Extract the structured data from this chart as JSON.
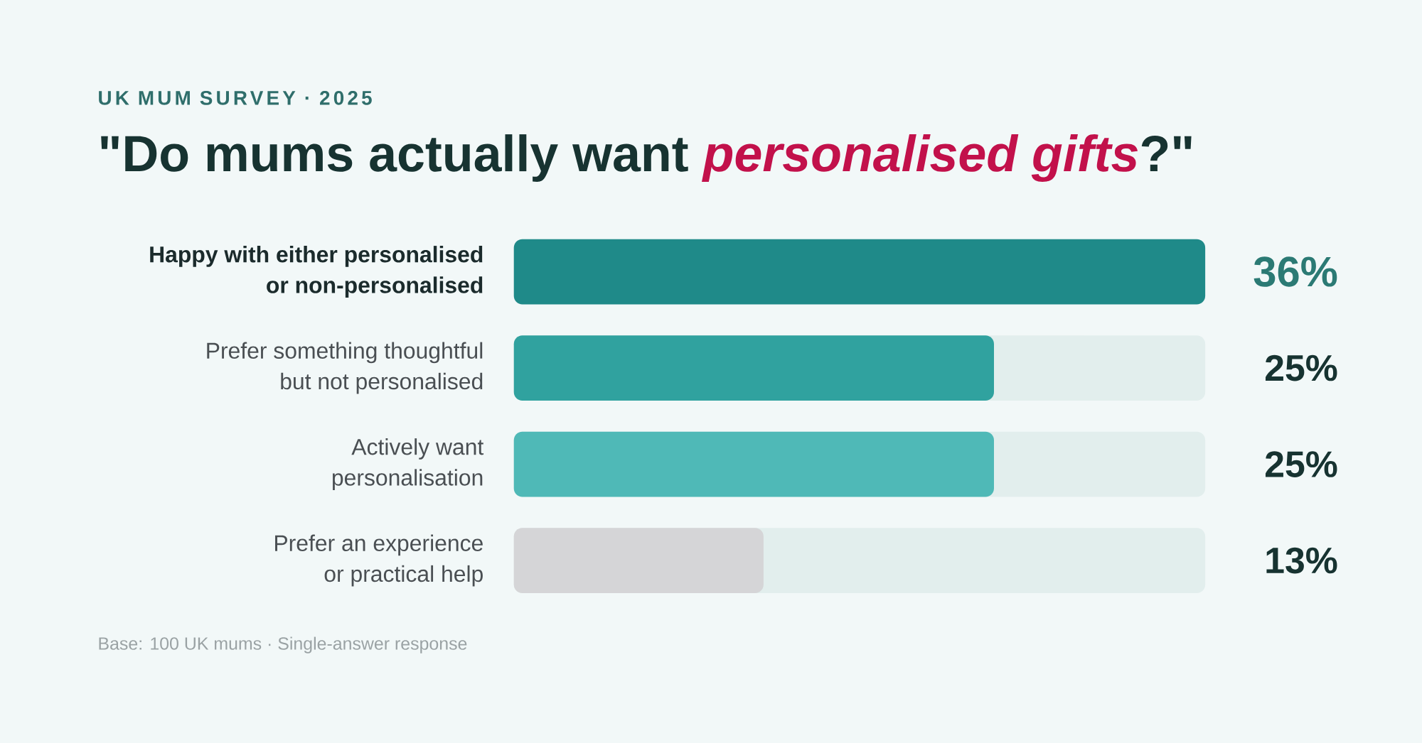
{
  "chart_data": {
    "type": "bar",
    "orientation": "horizontal",
    "subtitle": "UK MUM SURVEY · 2025",
    "title": "\"Do mums actually want *personalised gifts*?\"",
    "categories": [
      "Happy with either personalised or non-personalised",
      "Prefer something thoughtful but not personalised",
      "Actively want personalisation",
      "Prefer an experience or practical help"
    ],
    "values": [
      36,
      25,
      25,
      13
    ],
    "colors": [
      "#1f8a89",
      "#30a29f",
      "#4fb9b7",
      "#d5d5d7"
    ],
    "value_labels": [
      "36%",
      "25%",
      "25%",
      "13%"
    ],
    "tick_labels": "y",
    "annotations": [
      "Base: 100 UK mums · Single-answer response"
    ]
  }
}
